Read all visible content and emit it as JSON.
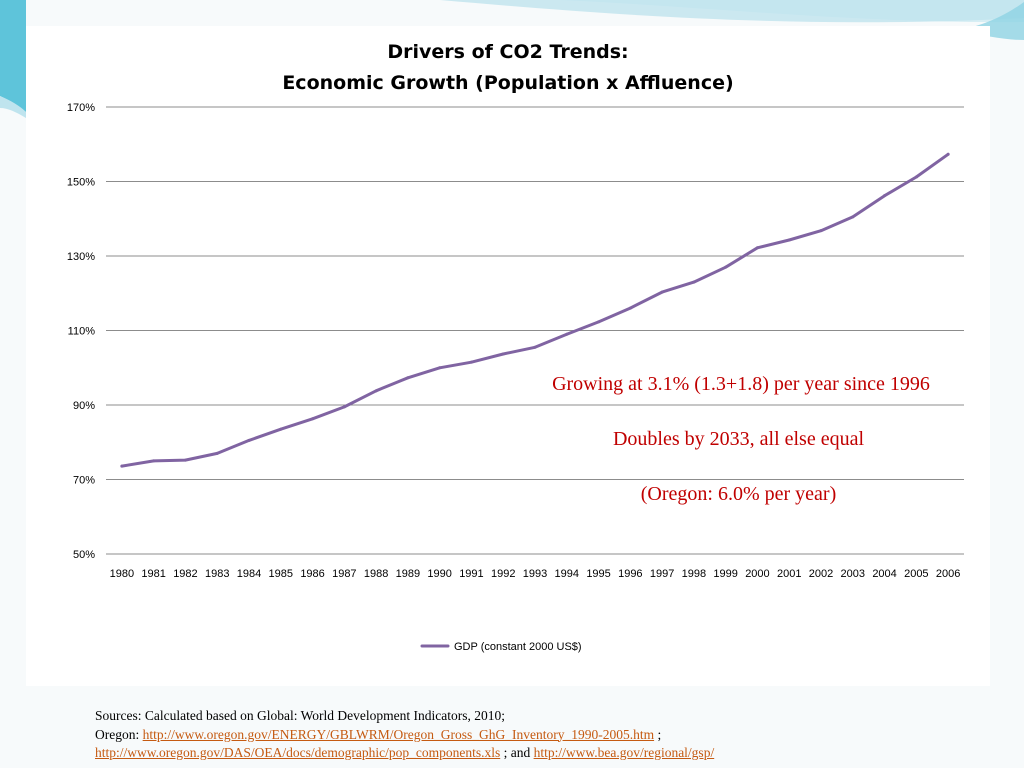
{
  "chart_data": {
    "type": "line",
    "title": "Drivers of CO2 Trends:",
    "subtitle": "Economic Growth (Population x Affluence)",
    "xlabel": "",
    "ylabel": "",
    "categories": [
      "1980",
      "1981",
      "1982",
      "1983",
      "1984",
      "1985",
      "1986",
      "1987",
      "1988",
      "1989",
      "1990",
      "1991",
      "1992",
      "1993",
      "1994",
      "1995",
      "1996",
      "1997",
      "1998",
      "1999",
      "2000",
      "2001",
      "2002",
      "2003",
      "2004",
      "2005",
      "2006"
    ],
    "ylim": [
      50,
      170
    ],
    "yticks": [
      50,
      70,
      90,
      110,
      130,
      150,
      170
    ],
    "ytick_labels": [
      "50%",
      "70%",
      "90%",
      "110%",
      "130%",
      "150%",
      "170%"
    ],
    "grid": true,
    "legend": "bottom",
    "series": [
      {
        "name": "GDP (constant 2000 US$)",
        "color": "#8064a2",
        "values": [
          73.6,
          75.0,
          75.2,
          77.0,
          80.5,
          83.5,
          86.3,
          89.5,
          93.8,
          97.3,
          100.0,
          101.5,
          103.7,
          105.5,
          109.0,
          112.3,
          116.0,
          120.3,
          123.0,
          127.0,
          132.2,
          134.3,
          136.8,
          140.5,
          146.2,
          151.2,
          157.3
        ]
      }
    ]
  },
  "annotations": {
    "line1": "Growing at 3.1% (1.3+1.8) per year since 1996",
    "line2": "Doubles by 2033, all else equal",
    "line3": "(Oregon: 6.0% per year)",
    "color": "#c00000"
  },
  "sources": {
    "line1": "Sources: Calculated based on Global: World Development Indicators, 2010;",
    "oregon_label": "Oregon:",
    "link1": "http://www.oregon.gov/ENERGY/GBLWRM/Oregon_Gross_GhG_Inventory_1990-2005.htm",
    "sep1": ";",
    "link2": "http://www.oregon.gov/DAS/OEA/docs/demographic/pop_components.xls",
    "sep2": "; and",
    "link3": "http://www.bea.gov/regional/gsp/",
    "link_color": "#c55a11"
  },
  "theme": {
    "accent_teal": "#5ec4da",
    "light_teal": "#bfe4ee"
  }
}
